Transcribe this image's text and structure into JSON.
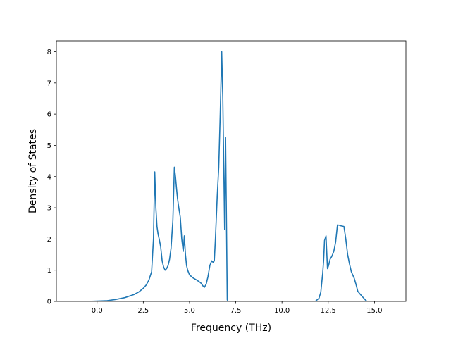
{
  "chart_data": {
    "type": "line",
    "title": "",
    "xlabel": "Frequency (THz)",
    "ylabel": "Density of States",
    "xlim": [
      -2.2,
      16.7
    ],
    "ylim": [
      0,
      8.35
    ],
    "grid": false,
    "legend": "none",
    "x_ticks": [
      0.0,
      2.5,
      5.0,
      7.5,
      10.0,
      12.5,
      15.0
    ],
    "x_tick_labels": [
      "0.0",
      "2.5",
      "5.0",
      "7.5",
      "10.0",
      "12.5",
      "15.0"
    ],
    "y_ticks": [
      0,
      1,
      2,
      3,
      4,
      5,
      6,
      7,
      8
    ],
    "y_tick_labels": [
      "0",
      "1",
      "2",
      "3",
      "4",
      "5",
      "6",
      "7",
      "8"
    ],
    "series": [
      {
        "color": "#1f77b4",
        "x": [
          -1.45,
          -0.5,
          0.0,
          0.5,
          1.0,
          1.5,
          2.0,
          2.25,
          2.5,
          2.65,
          2.8,
          2.95,
          3.05,
          3.12,
          3.18,
          3.24,
          3.3,
          3.36,
          3.44,
          3.52,
          3.6,
          3.68,
          3.76,
          3.84,
          3.92,
          4.0,
          4.1,
          4.18,
          4.24,
          4.3,
          4.35,
          4.42,
          4.5,
          4.58,
          4.66,
          4.72,
          4.78,
          4.84,
          4.9,
          5.0,
          5.2,
          5.4,
          5.6,
          5.72,
          5.8,
          5.9,
          6.0,
          6.1,
          6.2,
          6.28,
          6.34,
          6.4,
          6.5,
          6.58,
          6.66,
          6.74,
          6.8,
          6.86,
          6.9,
          6.95,
          6.99,
          7.04,
          7.08,
          7.14,
          7.25,
          8.0,
          9.0,
          10.0,
          11.0,
          11.8,
          12.0,
          12.1,
          12.2,
          12.25,
          12.3,
          12.38,
          12.46,
          12.52,
          12.6,
          12.7,
          12.8,
          12.9,
          13.0,
          13.1,
          13.2,
          13.35,
          13.45,
          13.55,
          13.65,
          13.75,
          13.9,
          14.0,
          14.1,
          14.2,
          14.35,
          14.5,
          14.6,
          15.0,
          15.5,
          15.9
        ],
        "y": [
          0.0,
          0.0,
          0.01,
          0.02,
          0.06,
          0.12,
          0.22,
          0.3,
          0.42,
          0.52,
          0.68,
          0.95,
          2.0,
          4.15,
          3.0,
          2.4,
          2.15,
          2.0,
          1.75,
          1.3,
          1.1,
          1.0,
          1.05,
          1.15,
          1.35,
          1.7,
          2.6,
          4.3,
          4.0,
          3.6,
          3.3,
          3.0,
          2.7,
          2.0,
          1.6,
          2.1,
          1.5,
          1.15,
          1.0,
          0.85,
          0.75,
          0.68,
          0.6,
          0.5,
          0.45,
          0.55,
          0.8,
          1.15,
          1.3,
          1.25,
          1.3,
          2.0,
          3.4,
          4.3,
          6.0,
          8.0,
          6.5,
          4.0,
          2.3,
          5.25,
          3.0,
          0.05,
          0.0,
          0.0,
          0.0,
          0.0,
          0.0,
          0.0,
          0.0,
          0.0,
          0.1,
          0.3,
          0.9,
          1.3,
          1.95,
          2.1,
          1.05,
          1.15,
          1.35,
          1.45,
          1.6,
          1.9,
          2.45,
          2.44,
          2.42,
          2.4,
          2.0,
          1.5,
          1.2,
          0.95,
          0.75,
          0.55,
          0.32,
          0.25,
          0.15,
          0.05,
          0.0,
          0.0,
          0.0,
          0.0
        ]
      }
    ]
  }
}
